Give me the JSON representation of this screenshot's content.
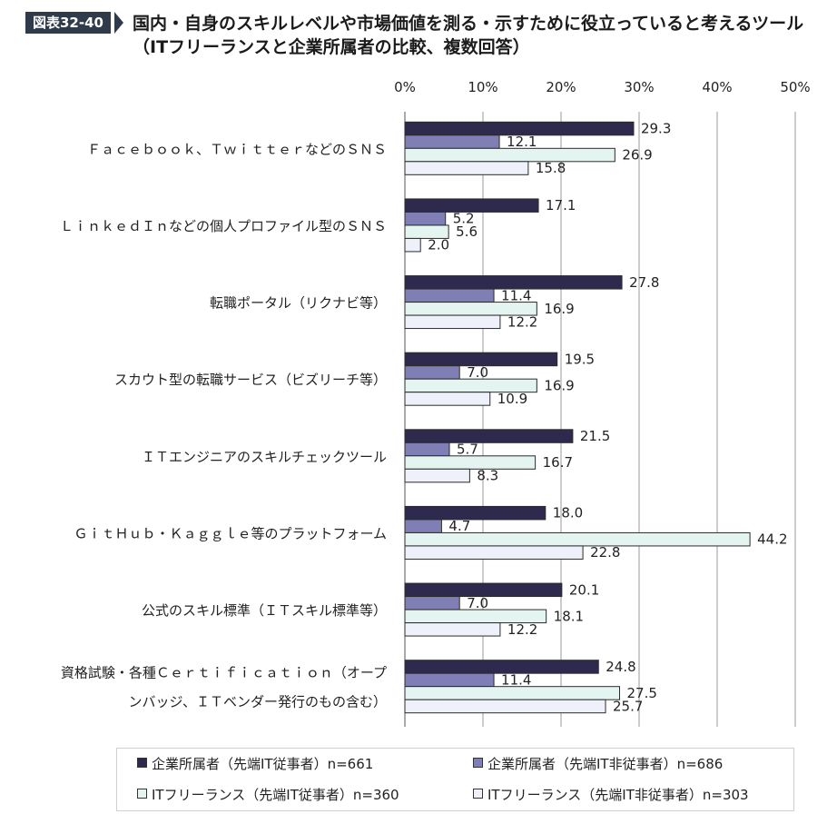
{
  "figure_tag": "図表32-40",
  "title_line1": "国内・自身のスキルレベルや市場価値を測る・示すために役立っていると考えるツール",
  "title_line2": "（ITフリーランスと企業所属者の比較、複数回答）",
  "chart_data": {
    "type": "bar",
    "orientation": "horizontal",
    "xlim": [
      0,
      50
    ],
    "x_ticks": [
      "0%",
      "10%",
      "20%",
      "30%",
      "40%",
      "50%"
    ],
    "grid": true,
    "legend_position": "bottom",
    "categories": [
      [
        "Ｆａｃｅｂｏｏｋ、ＴｗｉｔｔｅｒなどのＳＮＳ"
      ],
      [
        "ＬｉｎｋｅｄＩｎなどの個人プロファイル型のＳＮＳ"
      ],
      [
        "転職ポータル（リクナビ等）"
      ],
      [
        "スカウト型の転職サービス（ビズリーチ等）"
      ],
      [
        "ＩＴエンジニアのスキルチェックツール"
      ],
      [
        "ＧｉｔＨｕｂ・Ｋａｇｇｌｅ等のプラットフォーム"
      ],
      [
        "公式のスキル標準（ＩＴスキル標準等）"
      ],
      [
        "資格試験・各種Ｃｅｒｔｉｆｉｃａｔｉｏｎ（オープ",
        "ンバッジ、ＩＴベンダー発行のもの含む）"
      ]
    ],
    "series": [
      {
        "name": "企業所属者（先端IT従事者）n=661",
        "color": "#2d2a4e",
        "values": [
          29.3,
          17.1,
          27.8,
          19.5,
          21.5,
          18.0,
          20.1,
          24.8
        ]
      },
      {
        "name": "企業所属者（先端IT非従事者）n=686",
        "color": "#7f7fb5",
        "values": [
          12.1,
          5.2,
          11.4,
          7.0,
          5.7,
          4.7,
          7.0,
          11.4
        ]
      },
      {
        "name": "ITフリーランス（先端IT従事者）n=360",
        "color": "#e3f4f1",
        "values": [
          26.9,
          5.6,
          16.9,
          16.9,
          16.7,
          44.2,
          18.1,
          27.5
        ]
      },
      {
        "name": "ITフリーランス（先端IT非従事者）n=303",
        "color": "#eef0fa",
        "values": [
          15.8,
          2.0,
          12.2,
          10.9,
          8.3,
          22.8,
          12.2,
          25.7
        ]
      }
    ]
  }
}
